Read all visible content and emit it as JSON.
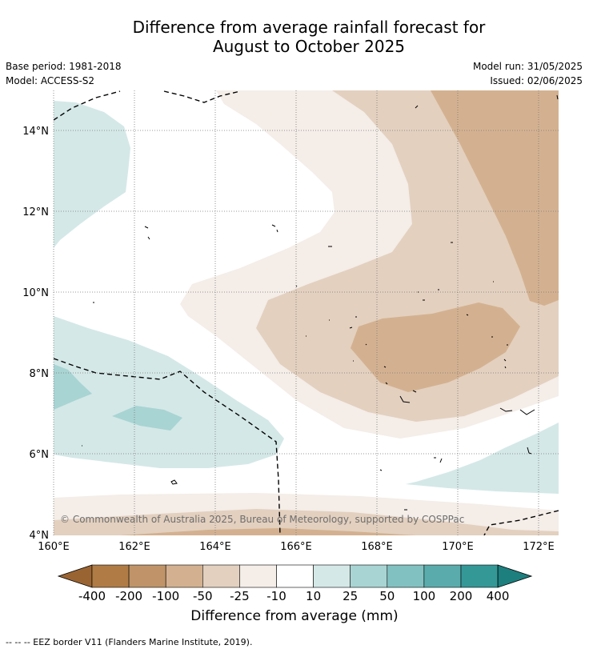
{
  "title": {
    "line1": "Difference from average rainfall forecast for",
    "line2": "August to October 2025"
  },
  "meta": {
    "base_period": "Base period: 1981-2018",
    "model": "Model: ACCESS-S2",
    "model_run": "Model run: 31/05/2025",
    "issued": "Issued: 02/06/2025"
  },
  "map": {
    "lon_range": [
      160,
      172.5
    ],
    "lat_range": [
      4,
      15
    ],
    "x_ticks": [
      "160°E",
      "162°E",
      "164°E",
      "166°E",
      "168°E",
      "170°E",
      "172°E"
    ],
    "y_ticks": [
      "4°N",
      "6°N",
      "8°N",
      "10°N",
      "12°N",
      "14°N"
    ],
    "grid": true,
    "copyright": "© Commonwealth of Australia 2025, Bureau of Meteorology, supported by COSPPac"
  },
  "colorbar": {
    "labels": [
      "-400",
      "-200",
      "-100",
      "-50",
      "-25",
      "-10",
      "10",
      "25",
      "50",
      "100",
      "200",
      "400"
    ],
    "colors": [
      "#9a6432",
      "#b07b44",
      "#c09468",
      "#d3b190",
      "#e3d0bf",
      "#f4ede8",
      "#ffffff",
      "#d4e8e7",
      "#a8d4d3",
      "#82c1c1",
      "#5aacac",
      "#349897",
      "#1d7f7e"
    ],
    "title": "Difference from average (mm)"
  },
  "footnote": "--  --  -- EEZ border V11 (Flanders Marine Institute, 2019)."
}
